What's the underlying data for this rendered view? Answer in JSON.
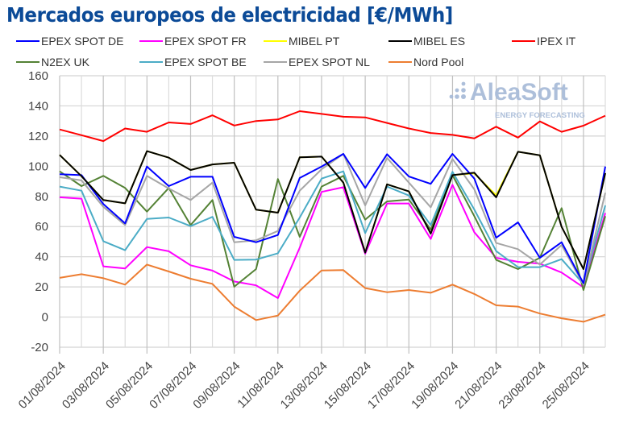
{
  "chart_data": {
    "type": "line",
    "title": "Mercados europeos de electricidad [€/MWh]",
    "xlabel": "",
    "ylabel": "",
    "ylim": [
      -20,
      160
    ],
    "yticks": [
      -20,
      0,
      20,
      40,
      60,
      80,
      100,
      120,
      140,
      160
    ],
    "grid": true,
    "legend_placement": "top",
    "x": [
      "01/08/2024",
      "02/08/2024",
      "03/08/2024",
      "04/08/2024",
      "05/08/2024",
      "06/08/2024",
      "07/08/2024",
      "08/08/2024",
      "09/08/2024",
      "10/08/2024",
      "11/08/2024",
      "12/08/2024",
      "13/08/2024",
      "14/08/2024",
      "15/08/2024",
      "16/08/2024",
      "17/08/2024",
      "18/08/2024",
      "19/08/2024",
      "20/08/2024",
      "21/08/2024",
      "22/08/2024",
      "23/08/2024",
      "24/08/2024",
      "25/08/2024",
      "26/08/2024"
    ],
    "xtick_labels": [
      "01/08/2024",
      "03/08/2024",
      "05/08/2024",
      "07/08/2024",
      "09/08/2024",
      "11/08/2024",
      "13/08/2024",
      "15/08/2024",
      "17/08/2024",
      "19/08/2024",
      "21/08/2024",
      "23/08/2024",
      "25/08/2024"
    ],
    "series": [
      {
        "name": "EPEX SPOT DE",
        "color": "#0000ff",
        "values": [
          94.7,
          94.1,
          74.9,
          62.1,
          99.8,
          86.8,
          93.0,
          93.0,
          53.2,
          49.6,
          54.4,
          92.2,
          99.8,
          108.2,
          85.6,
          108.0,
          93.2,
          88.3,
          108.2,
          91.8,
          52.6,
          62.8,
          39.3,
          49.6,
          22.4,
          99.8
        ]
      },
      {
        "name": "EPEX SPOT FR",
        "color": "#ff00ff",
        "values": [
          79.4,
          78.5,
          33.6,
          32.2,
          46.4,
          43.6,
          34.3,
          30.8,
          23.6,
          21.0,
          12.6,
          46.0,
          83.0,
          86.1,
          42.0,
          75.3,
          75.3,
          51.8,
          87.7,
          56.2,
          39.3,
          36.6,
          35.4,
          29.5,
          19.7,
          69.0
        ]
      },
      {
        "name": "MIBEL PT",
        "color": "#ffff00",
        "values": [
          107.5,
          93.4,
          77.6,
          75.4,
          110.0,
          105.7,
          97.5,
          101.2,
          102.3,
          71.2,
          69.2,
          105.9,
          106.4,
          89.1,
          42.7,
          88.0,
          83.3,
          55.3,
          94.1,
          95.2,
          80.8,
          109.6,
          107.3,
          59.8,
          31.8,
          95.4
        ]
      },
      {
        "name": "MIBEL ES",
        "color": "#000000",
        "values": [
          107.5,
          93.4,
          77.6,
          75.4,
          110.0,
          105.7,
          97.5,
          101.2,
          102.3,
          71.2,
          69.2,
          105.9,
          106.4,
          89.1,
          42.7,
          88.0,
          83.3,
          55.3,
          94.1,
          95.7,
          79.4,
          109.6,
          107.3,
          59.8,
          31.8,
          95.4
        ]
      },
      {
        "name": "IPEX IT",
        "color": "#ff0000",
        "values": [
          124.4,
          120.6,
          116.7,
          125.0,
          122.8,
          129.0,
          128.0,
          133.8,
          127.0,
          130.0,
          131.0,
          136.5,
          134.7,
          132.8,
          132.4,
          128.7,
          125.0,
          122.0,
          120.8,
          118.5,
          126.2,
          119.0,
          129.7,
          122.8,
          126.9,
          133.5
        ]
      },
      {
        "name": "N2EX UK",
        "color": "#548235",
        "values": [
          96.6,
          86.8,
          93.6,
          85.6,
          69.9,
          85.6,
          61.0,
          77.6,
          20.1,
          31.8,
          91.5,
          53.2,
          86.5,
          93.6,
          64.6,
          76.7,
          77.9,
          58.0,
          94.1,
          66.9,
          37.9,
          31.8,
          39.3,
          72.2,
          17.9,
          66.9
        ]
      },
      {
        "name": "EPEX SPOT BE",
        "color": "#4bacc6",
        "values": [
          86.5,
          83.8,
          50.3,
          44.3,
          65.1,
          66.0,
          60.3,
          66.4,
          37.9,
          38.1,
          42.3,
          66.0,
          91.8,
          96.6,
          55.7,
          86.5,
          80.6,
          61.0,
          96.3,
          71.3,
          43.7,
          33.1,
          33.1,
          38.4,
          21.9,
          74.0
        ]
      },
      {
        "name": "EPEX SPOT NL",
        "color": "#a6a6a6",
        "values": [
          92.7,
          90.6,
          73.1,
          61.0,
          93.6,
          85.2,
          77.6,
          89.1,
          49.6,
          50.9,
          57.1,
          83.8,
          98.0,
          108.2,
          74.0,
          105.5,
          89.1,
          72.8,
          104.8,
          84.7,
          49.1,
          45.0,
          34.8,
          47.8,
          21.5,
          82.4
        ]
      },
      {
        "name": "Nord Pool",
        "color": "#ed7d31",
        "values": [
          26.0,
          28.4,
          25.8,
          21.5,
          34.8,
          30.2,
          25.4,
          22.0,
          6.9,
          -2.0,
          1.0,
          17.5,
          30.9,
          31.1,
          19.2,
          16.5,
          17.9,
          16.1,
          21.5,
          15.3,
          7.8,
          6.9,
          2.3,
          -0.8,
          -3.1,
          1.6
        ]
      }
    ],
    "draw_order": [
      "MIBEL PT",
      "Nord Pool",
      "EPEX SPOT FR",
      "N2EX UK",
      "EPEX SPOT BE",
      "EPEX SPOT NL",
      "EPEX SPOT DE",
      "MIBEL ES",
      "IPEX IT"
    ]
  },
  "watermark": {
    "brand": "AleaSoft",
    "tagline": "ENERGY FORECASTING",
    "color": "#a9bcd9"
  }
}
